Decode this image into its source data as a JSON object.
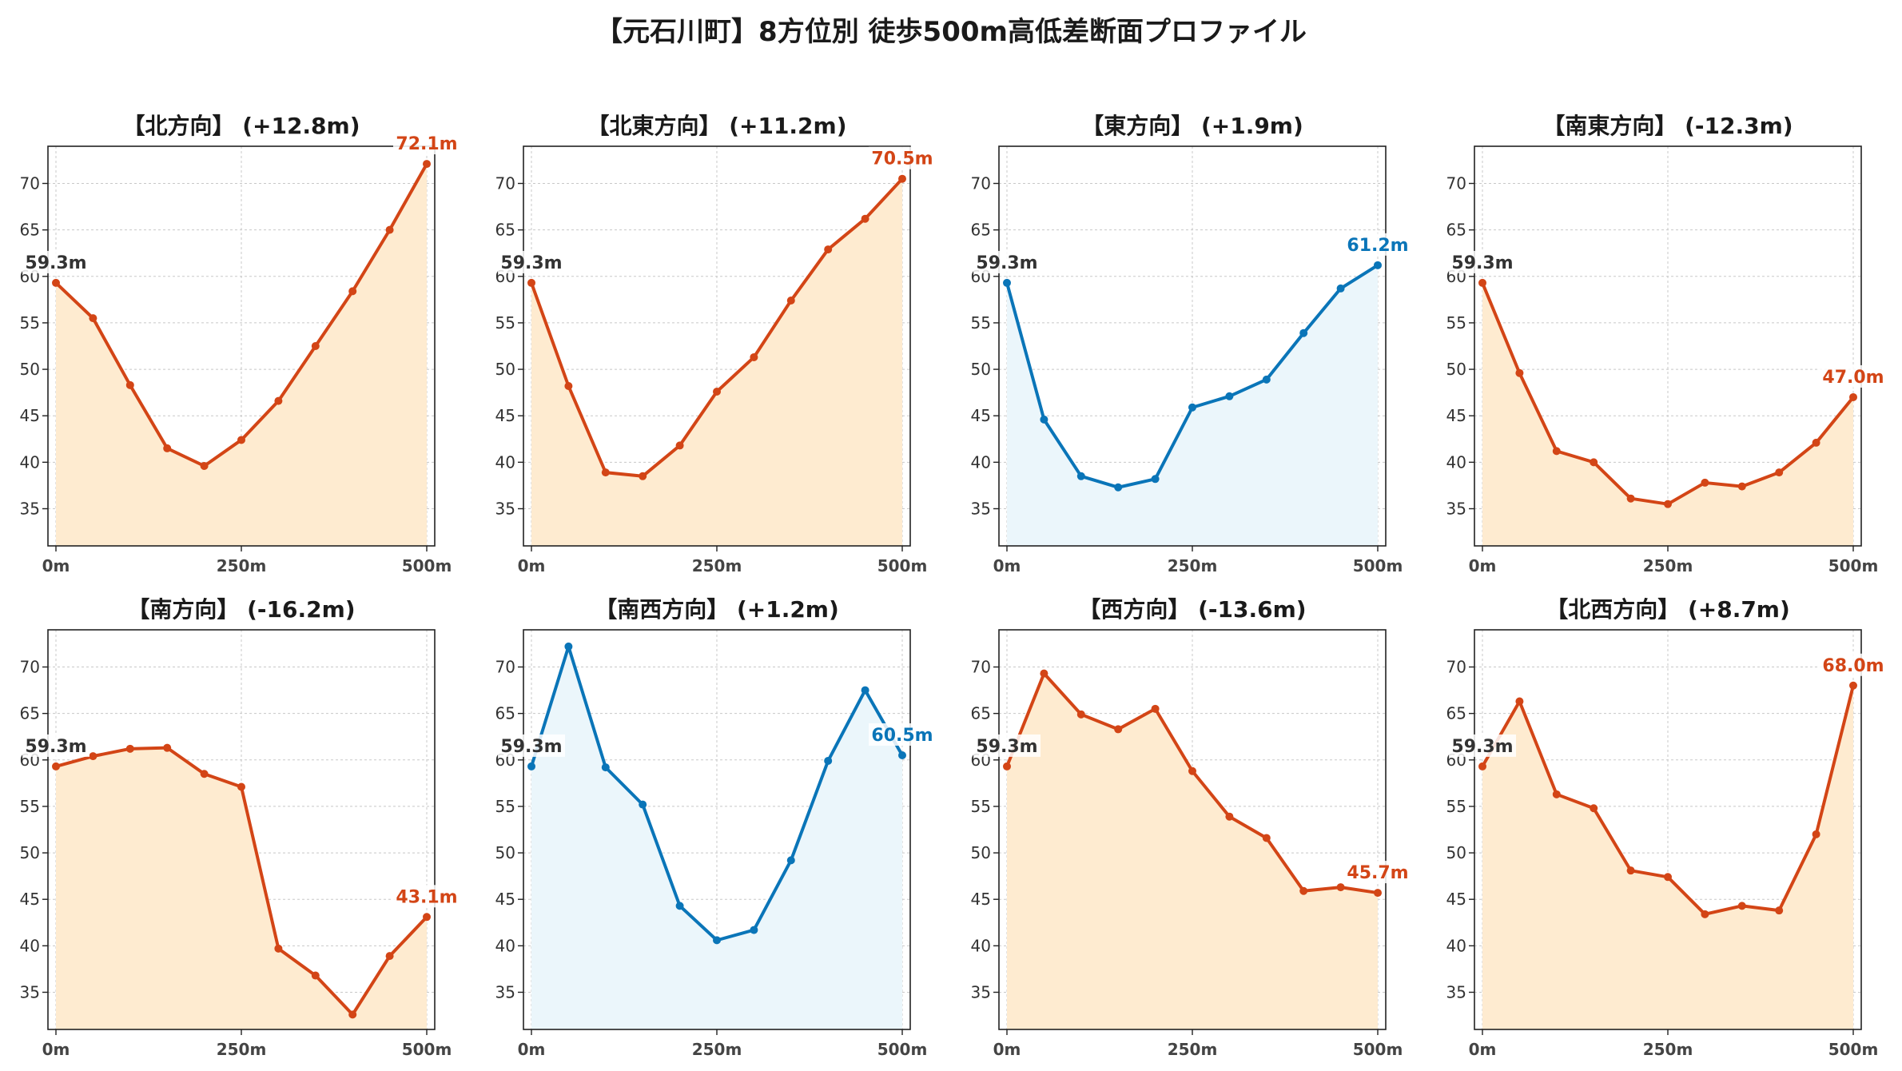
{
  "title": "【元石川町】8方位別 徒歩500m高低差断面プロファイル",
  "colors": {
    "up_line": "#d34516",
    "up_fill": "#feebd0",
    "flat_line": "#0a75b8",
    "flat_fill": "#ebf6fb",
    "start_label": "#333333",
    "grid": "#c8c8c8"
  },
  "chart_data": [
    {
      "type": "line",
      "title": "【北方向】 (+12.8m)",
      "x": [
        0,
        50,
        100,
        150,
        200,
        250,
        300,
        350,
        400,
        450,
        500
      ],
      "y": [
        59.3,
        55.5,
        48.3,
        41.5,
        39.6,
        42.4,
        46.6,
        52.5,
        58.4,
        65.0,
        72.1
      ],
      "start_label": "59.3m",
      "end_label": "72.1m",
      "style": "up",
      "xticks": [
        "0m",
        "250m",
        "500m"
      ],
      "ylim": [
        31,
        74
      ],
      "yticks": [
        35,
        40,
        45,
        50,
        55,
        60,
        65,
        70
      ],
      "grid": true
    },
    {
      "type": "line",
      "title": "【北東方向】 (+11.2m)",
      "x": [
        0,
        50,
        100,
        150,
        200,
        250,
        300,
        350,
        400,
        450,
        500
      ],
      "y": [
        59.3,
        48.2,
        38.9,
        38.5,
        41.8,
        47.6,
        51.3,
        57.4,
        62.9,
        66.2,
        70.5
      ],
      "start_label": "59.3m",
      "end_label": "70.5m",
      "style": "up",
      "xticks": [
        "0m",
        "250m",
        "500m"
      ],
      "ylim": [
        31,
        74
      ],
      "yticks": [
        35,
        40,
        45,
        50,
        55,
        60,
        65,
        70
      ],
      "grid": true
    },
    {
      "type": "line",
      "title": "【東方向】 (+1.9m)",
      "x": [
        0,
        50,
        100,
        150,
        200,
        250,
        300,
        350,
        400,
        450,
        500
      ],
      "y": [
        59.3,
        44.6,
        38.5,
        37.3,
        38.2,
        45.9,
        47.1,
        48.9,
        53.9,
        58.7,
        61.2
      ],
      "start_label": "59.3m",
      "end_label": "61.2m",
      "style": "flat",
      "xticks": [
        "0m",
        "250m",
        "500m"
      ],
      "ylim": [
        31,
        74
      ],
      "yticks": [
        35,
        40,
        45,
        50,
        55,
        60,
        65,
        70
      ],
      "grid": true
    },
    {
      "type": "line",
      "title": "【南東方向】 (-12.3m)",
      "x": [
        0,
        50,
        100,
        150,
        200,
        250,
        300,
        350,
        400,
        450,
        500
      ],
      "y": [
        59.3,
        49.6,
        41.2,
        40.0,
        36.1,
        35.5,
        37.8,
        37.4,
        38.9,
        42.1,
        47.0
      ],
      "start_label": "59.3m",
      "end_label": "47.0m",
      "style": "up",
      "xticks": [
        "0m",
        "250m",
        "500m"
      ],
      "ylim": [
        31,
        74
      ],
      "yticks": [
        35,
        40,
        45,
        50,
        55,
        60,
        65,
        70
      ],
      "grid": true
    },
    {
      "type": "line",
      "title": "【南方向】 (-16.2m)",
      "x": [
        0,
        50,
        100,
        150,
        200,
        250,
        300,
        350,
        400,
        450,
        500
      ],
      "y": [
        59.3,
        60.4,
        61.2,
        61.3,
        58.5,
        57.1,
        39.7,
        36.8,
        32.6,
        38.9,
        43.1
      ],
      "start_label": "59.3m",
      "end_label": "43.1m",
      "style": "up",
      "xticks": [
        "0m",
        "250m",
        "500m"
      ],
      "ylim": [
        31,
        74
      ],
      "yticks": [
        35,
        40,
        45,
        50,
        55,
        60,
        65,
        70
      ],
      "grid": true
    },
    {
      "type": "line",
      "title": "【南西方向】 (+1.2m)",
      "x": [
        0,
        50,
        100,
        150,
        200,
        250,
        300,
        350,
        400,
        450,
        500
      ],
      "y": [
        59.3,
        72.2,
        59.2,
        55.2,
        44.3,
        40.6,
        41.7,
        49.2,
        59.9,
        67.5,
        60.5
      ],
      "start_label": "59.3m",
      "end_label": "60.5m",
      "style": "flat",
      "xticks": [
        "0m",
        "250m",
        "500m"
      ],
      "ylim": [
        31,
        74
      ],
      "yticks": [
        35,
        40,
        45,
        50,
        55,
        60,
        65,
        70
      ],
      "grid": true
    },
    {
      "type": "line",
      "title": "【西方向】 (-13.6m)",
      "x": [
        0,
        50,
        100,
        150,
        200,
        250,
        300,
        350,
        400,
        450,
        500
      ],
      "y": [
        59.3,
        69.3,
        64.9,
        63.3,
        65.5,
        58.8,
        53.9,
        51.6,
        45.9,
        46.3,
        45.7
      ],
      "start_label": "59.3m",
      "end_label": "45.7m",
      "style": "up",
      "xticks": [
        "0m",
        "250m",
        "500m"
      ],
      "ylim": [
        31,
        74
      ],
      "yticks": [
        35,
        40,
        45,
        50,
        55,
        60,
        65,
        70
      ],
      "grid": true
    },
    {
      "type": "line",
      "title": "【北西方向】 (+8.7m)",
      "x": [
        0,
        50,
        100,
        150,
        200,
        250,
        300,
        350,
        400,
        450,
        500
      ],
      "y": [
        59.3,
        66.3,
        56.3,
        54.8,
        48.1,
        47.4,
        43.4,
        44.3,
        43.8,
        52.0,
        68.0
      ],
      "start_label": "59.3m",
      "end_label": "68.0m",
      "style": "up",
      "xticks": [
        "0m",
        "250m",
        "500m"
      ],
      "ylim": [
        31,
        74
      ],
      "yticks": [
        35,
        40,
        45,
        50,
        55,
        60,
        65,
        70
      ],
      "grid": true
    }
  ]
}
